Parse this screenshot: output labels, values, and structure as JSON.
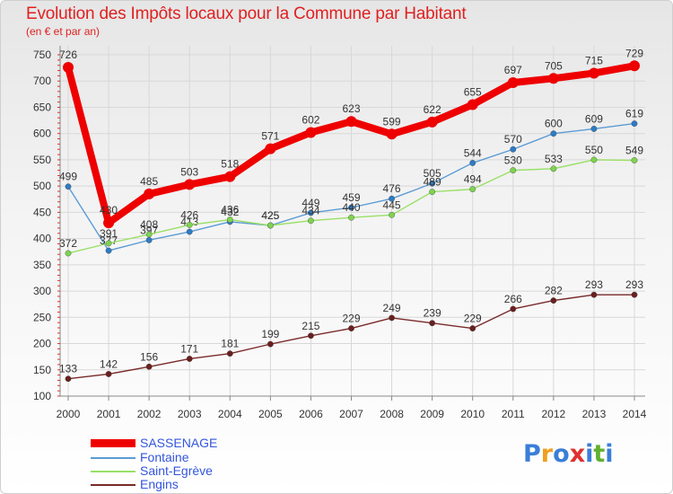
{
  "header": {
    "title": "Evolution des Impôts locaux pour la Commune par Habitant",
    "subtitle": "(en € et par an)"
  },
  "chart_data": {
    "type": "line",
    "title": "Evolution des Impôts locaux pour la Commune par Habitant",
    "ylabel": "(en € et par an)",
    "xlabel": "",
    "ylim": [
      100,
      750
    ],
    "yticks": [
      100,
      150,
      200,
      250,
      300,
      350,
      400,
      450,
      500,
      550,
      600,
      650,
      700,
      750
    ],
    "categories": [
      "2000",
      "2001",
      "2002",
      "2003",
      "2004",
      "2005",
      "2006",
      "2007",
      "2008",
      "2009",
      "2010",
      "2011",
      "2012",
      "2013",
      "2014"
    ],
    "series": [
      {
        "name": "Fontaine",
        "color": "#5b9bd5",
        "marker": "#2e7bc4",
        "values": [
          499,
          377,
          397,
          413,
          432,
          425,
          449,
          459,
          476,
          505,
          544,
          570,
          600,
          609,
          619
        ]
      },
      {
        "name": "Saint-Egrève",
        "color": "#99e066",
        "marker": "#7ed34f",
        "values": [
          372,
          391,
          408,
          426,
          436,
          425,
          434,
          440,
          445,
          489,
          494,
          530,
          533,
          550,
          549
        ]
      },
      {
        "name": "Engins",
        "color": "#7a2a2a",
        "marker": "#6a1f1f",
        "values": [
          133,
          142,
          156,
          171,
          181,
          199,
          215,
          229,
          249,
          239,
          229,
          266,
          282,
          293,
          293
        ]
      },
      {
        "name": "SASSENAGE",
        "color": "#ee0000",
        "marker": "#ee0000",
        "values": [
          726,
          430,
          485,
          503,
          518,
          571,
          602,
          623,
          599,
          622,
          655,
          697,
          705,
          715,
          729
        ]
      }
    ],
    "legend": [
      "SASSENAGE",
      "Fontaine",
      "Saint-Egrève",
      "Engins"
    ],
    "legend_position": "bottom-left",
    "grid": true
  },
  "logo": {
    "text": "Proxiti",
    "colors": [
      "#3a7ed8",
      "#f0a020",
      "#3a7ed8",
      "#e03030",
      "#3a7ed8",
      "#60b030",
      "#3a7ed8"
    ]
  }
}
